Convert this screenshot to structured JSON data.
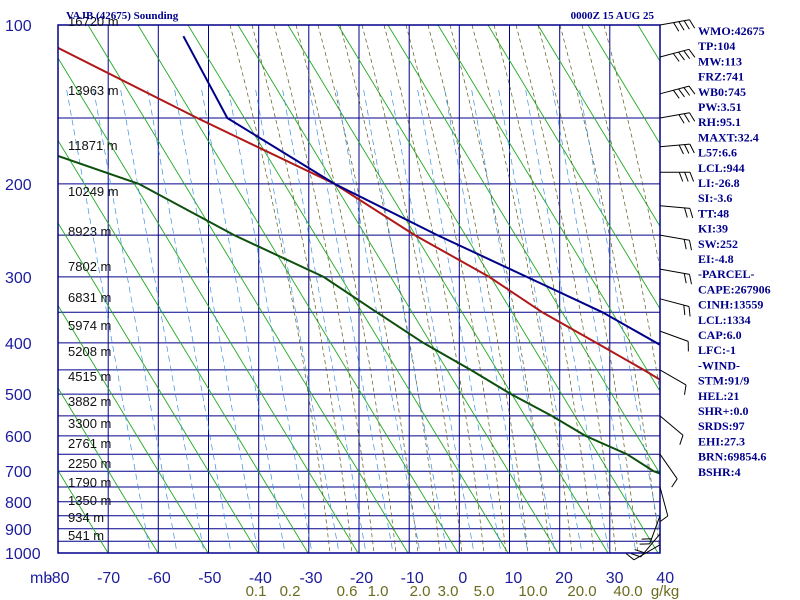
{
  "chart_data": {
    "type": "line",
    "title": "VAJB (42675) Sounding",
    "valid_time": "0000Z 15 AUG 25",
    "x_axis_label": "mb",
    "mixing_ratio_unit": "g/kg",
    "xlim": [
      -80,
      0
    ],
    "ylim": [
      1000,
      100
    ],
    "y_scale": "log",
    "pressure_ticks": [
      "100",
      "200",
      "300",
      "400",
      "500",
      "600",
      "700",
      "800",
      "900",
      "1000"
    ],
    "temperature_ticks": [
      "-80",
      "-70",
      "-60",
      "-50",
      "-40",
      "-30",
      "-20",
      "-10",
      "0",
      "10",
      "20",
      "30",
      "40"
    ],
    "mixing_ratio_labels": [
      "0.1",
      "0.2",
      "0.6",
      "1.0",
      "2.0",
      "3.0",
      "5.0",
      "10.0",
      "20.0",
      "40.0"
    ],
    "height_labels": [
      "16720 m",
      "13963 m",
      "11871 m",
      "10249 m",
      "8923 m",
      "7802 m",
      "6831 m",
      "5974 m",
      "5208 m",
      "4515 m",
      "3882 m",
      "3300 m",
      "2761 m",
      "2250 m",
      "1790 m",
      "1350 m",
      "934 m",
      "541 m"
    ],
    "series": [
      {
        "name": "Temperature",
        "color": "#b01818",
        "points": [
          [
            -100,
            100
          ],
          [
            -73,
            150
          ],
          [
            -53,
            200
          ],
          [
            -41,
            250
          ],
          [
            -30,
            300
          ],
          [
            -22,
            350
          ],
          [
            -14,
            400
          ],
          [
            -7,
            450
          ],
          [
            -1,
            500
          ],
          [
            4,
            550
          ],
          [
            9,
            600
          ],
          [
            12,
            650
          ],
          [
            15,
            700
          ],
          [
            18,
            750
          ],
          [
            21,
            800
          ],
          [
            23,
            850
          ],
          [
            25,
            900
          ],
          [
            26,
            935
          ]
        ]
      },
      {
        "name": "Dewpoint",
        "color": "#0d4f0d",
        "points": [
          [
            -100,
            160
          ],
          [
            -79,
            200
          ],
          [
            -65,
            250
          ],
          [
            -52,
            300
          ],
          [
            -44,
            350
          ],
          [
            -37,
            400
          ],
          [
            -30,
            450
          ],
          [
            -24,
            500
          ],
          [
            -18,
            550
          ],
          [
            -13,
            600
          ],
          [
            -7,
            650
          ],
          [
            -3,
            700
          ],
          [
            3,
            750
          ],
          [
            7,
            800
          ],
          [
            12,
            850
          ],
          [
            17,
            900
          ],
          [
            22,
            935
          ]
        ]
      },
      {
        "name": "Parcel",
        "color": "#00008b",
        "points": [
          [
            -77,
            105
          ],
          [
            -69,
            150
          ],
          [
            -53,
            200
          ],
          [
            -38,
            250
          ],
          [
            -25,
            300
          ],
          [
            -14,
            350
          ],
          [
            -6,
            400
          ],
          [
            1,
            450
          ],
          [
            7,
            500
          ],
          [
            12,
            550
          ],
          [
            16,
            600
          ],
          [
            20,
            650
          ],
          [
            23,
            700
          ],
          [
            27,
            750
          ],
          [
            30,
            800
          ],
          [
            33,
            850
          ],
          [
            36,
            900
          ],
          [
            38,
            950
          ],
          [
            39,
            965
          ]
        ]
      }
    ],
    "wind_barbs": [
      {
        "p": 100,
        "dir": 80,
        "kt": 40
      },
      {
        "p": 115,
        "dir": 75,
        "kt": 35
      },
      {
        "p": 135,
        "dir": 75,
        "kt": 35
      },
      {
        "p": 150,
        "dir": 80,
        "kt": 30
      },
      {
        "p": 170,
        "dir": 85,
        "kt": 25
      },
      {
        "p": 190,
        "dir": 90,
        "kt": 25
      },
      {
        "p": 220,
        "dir": 95,
        "kt": 20
      },
      {
        "p": 250,
        "dir": 100,
        "kt": 20
      },
      {
        "p": 290,
        "dir": 100,
        "kt": 15
      },
      {
        "p": 330,
        "dir": 105,
        "kt": 15
      },
      {
        "p": 380,
        "dir": 110,
        "kt": 10
      },
      {
        "p": 450,
        "dir": 120,
        "kt": 10
      },
      {
        "p": 550,
        "dir": 130,
        "kt": 10
      },
      {
        "p": 650,
        "dir": 145,
        "kt": 10
      },
      {
        "p": 750,
        "dir": 165,
        "kt": 10
      },
      {
        "p": 850,
        "dir": 200,
        "kt": 15
      },
      {
        "p": 920,
        "dir": 220,
        "kt": 15
      },
      {
        "p": 965,
        "dir": 240,
        "kt": 10
      }
    ],
    "indices": [
      "WMO:42675",
      "TP:104",
      "MW:113",
      "FRZ:741",
      "WB0:745",
      "PW:3.51",
      "RH:95.1",
      "MAXT:32.4",
      "L57:6.6",
      "LCL:944",
      "LI:-26.8",
      "SI:-3.6",
      "TT:48",
      "KI:39",
      "SW:252",
      "EI:-4.8",
      "-PARCEL-",
      "CAPE:267906",
      "CINH:13559",
      "LCL:1334",
      "CAP:6.0",
      "LFC:-1",
      "-WIND-",
      "STM:91/9",
      "HEL:21",
      "SHR+:0.0",
      "SRDS:97",
      "EHI:27.3",
      "BRN:69854.6",
      "BSHR:4"
    ],
    "colors": {
      "frame": "#00008b",
      "isotherm": "#00008b",
      "dry_adiabat": "#22aa22",
      "moist_adiabat": "#5a5a1a",
      "mixing_ratio": "#3a8fe0",
      "temperature": "#b01818",
      "dewpoint": "#0d4f0d",
      "parcel": "#00008b"
    }
  }
}
